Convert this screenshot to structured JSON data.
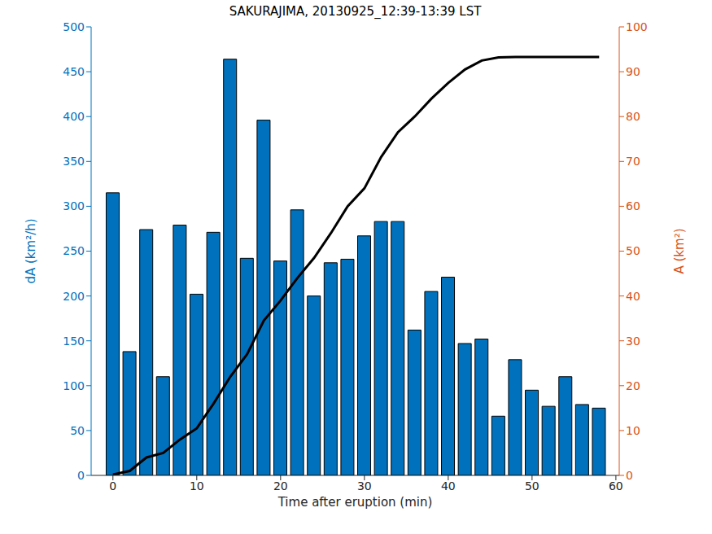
{
  "chart_data": {
    "type": "bar",
    "title": "SAKURAJIMA, 20130925_12:39-13:39 LST",
    "x_label": "Time after eruption (min)",
    "y_label": "dA (km²/h)",
    "y2_label": "A (km²)",
    "x": [
      0,
      2,
      4,
      6,
      8,
      10,
      12,
      14,
      16,
      18,
      20,
      22,
      24,
      26,
      28,
      30,
      32,
      34,
      36,
      38,
      40,
      42,
      44,
      46,
      48,
      50,
      52,
      54,
      56,
      58
    ],
    "series": [
      {
        "type": "bar",
        "color": "#0072BD",
        "values": [
          315,
          138,
          274,
          110,
          279,
          202,
          271,
          464,
          242,
          396,
          239,
          296,
          200,
          237,
          241,
          267,
          283,
          283,
          162,
          205,
          221,
          147,
          152,
          66,
          129,
          95,
          77,
          110,
          79,
          75
        ]
      },
      {
        "type": "line",
        "color": "#000000",
        "axis": "y2",
        "values": [
          0.2,
          1,
          4,
          5,
          8,
          10.5,
          16,
          22,
          27,
          34.5,
          39,
          44,
          48.5,
          54,
          60,
          64,
          71,
          76.5,
          80,
          84,
          87.5,
          90.5,
          92.5,
          93.2,
          93.3,
          93.3,
          93.3,
          93.3,
          93.3,
          93.3
        ]
      }
    ],
    "xlim": [
      -2.6,
      60.4
    ],
    "xticks": [
      0,
      10,
      20,
      30,
      40,
      50,
      60
    ],
    "ylim": [
      0,
      500
    ],
    "yticks": [
      0,
      50,
      100,
      150,
      200,
      250,
      300,
      350,
      400,
      450,
      500
    ],
    "y2lim": [
      0,
      100
    ],
    "y2ticks": [
      0,
      10,
      20,
      30,
      40,
      50,
      60,
      70,
      80,
      90,
      100
    ],
    "grid": false
  }
}
